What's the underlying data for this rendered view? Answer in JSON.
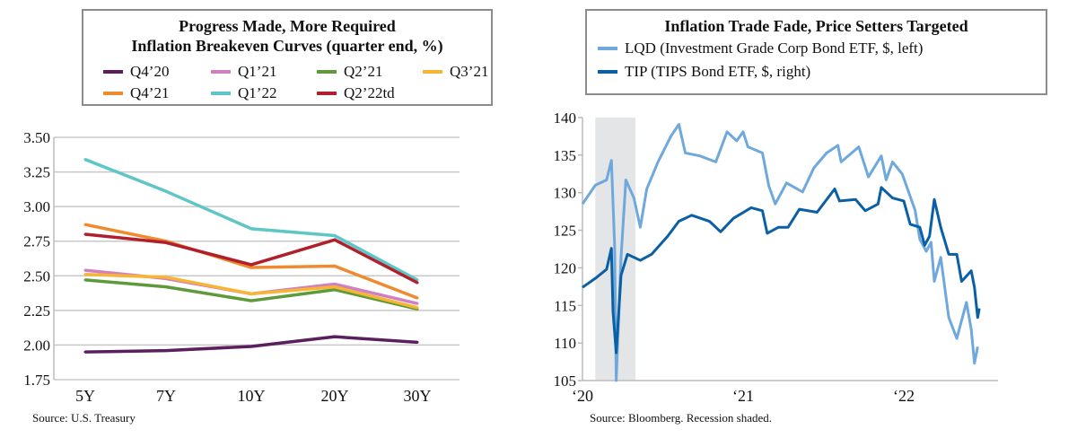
{
  "chart_data": [
    {
      "type": "line",
      "title": "Progress Made, More Required",
      "subtitle": "Inflation Breakeven Curves (quarter end, %)",
      "categories": [
        "5Y",
        "7Y",
        "10Y",
        "20Y",
        "30Y"
      ],
      "yticks": [
        "3.50",
        "3.25",
        "3.00",
        "2.75",
        "2.50",
        "2.25",
        "2.00",
        "1.75"
      ],
      "ylim": [
        1.75,
        3.5
      ],
      "grid": true,
      "series": [
        {
          "name": "Q4’20",
          "color": "#5c1f5e",
          "values": [
            1.95,
            1.96,
            1.99,
            2.06,
            2.02
          ]
        },
        {
          "name": "Q1’21",
          "color": "#d07fc3",
          "values": [
            2.54,
            2.48,
            2.37,
            2.44,
            2.3
          ]
        },
        {
          "name": "Q2’21",
          "color": "#5e9a3a",
          "values": [
            2.47,
            2.42,
            2.32,
            2.4,
            2.26
          ]
        },
        {
          "name": "Q3’21",
          "color": "#f6b533",
          "values": [
            2.51,
            2.49,
            2.37,
            2.42,
            2.27
          ]
        },
        {
          "name": "Q4’21",
          "color": "#ef8a2f",
          "values": [
            2.87,
            2.75,
            2.56,
            2.57,
            2.34
          ]
        },
        {
          "name": "Q1’22",
          "color": "#5ec6c6",
          "values": [
            3.34,
            3.11,
            2.84,
            2.79,
            2.47
          ]
        },
        {
          "name": "Q2’22td",
          "color": "#b0202c",
          "values": [
            2.8,
            2.74,
            2.58,
            2.76,
            2.45
          ]
        }
      ],
      "source": "Source:  U.S. Treasury"
    },
    {
      "type": "line",
      "title": "Inflation Trade Fade, Price Setters Targeted",
      "xticks": [
        {
          "label": "‘20",
          "x": 2020
        },
        {
          "label": "‘21",
          "x": 2021
        },
        {
          "label": "‘22",
          "x": 2022
        }
      ],
      "xlim": [
        2020,
        2022.6
      ],
      "ylim": [
        105,
        140
      ],
      "yticks": [
        "140",
        "135",
        "130",
        "125",
        "120",
        "115",
        "110",
        "105"
      ],
      "recession": [
        2020.08,
        2020.33
      ],
      "series": [
        {
          "name": "LQD (Investment Grade Corp Bond ETF, $, left)",
          "color": "#6fa8dc",
          "points": [
            [
              2020.0,
              128.5
            ],
            [
              2020.08,
              131
            ],
            [
              2020.15,
              131.7
            ],
            [
              2020.18,
              134.3
            ],
            [
              2020.2,
              123
            ],
            [
              2020.21,
              105
            ],
            [
              2020.24,
              121.4
            ],
            [
              2020.27,
              131.7
            ],
            [
              2020.32,
              129.3
            ],
            [
              2020.36,
              125.4
            ],
            [
              2020.4,
              130.5
            ],
            [
              2020.47,
              134.1
            ],
            [
              2020.55,
              137.5
            ],
            [
              2020.6,
              139.1
            ],
            [
              2020.64,
              135.3
            ],
            [
              2020.73,
              134.9
            ],
            [
              2020.83,
              134.1
            ],
            [
              2020.9,
              138.1
            ],
            [
              2020.96,
              136.9
            ],
            [
              2021.0,
              138.1
            ],
            [
              2021.03,
              136.1
            ],
            [
              2021.12,
              135.3
            ],
            [
              2021.16,
              130.9
            ],
            [
              2021.2,
              128.5
            ],
            [
              2021.27,
              131.3
            ],
            [
              2021.37,
              130.1
            ],
            [
              2021.44,
              133.3
            ],
            [
              2021.52,
              135.3
            ],
            [
              2021.59,
              136.3
            ],
            [
              2021.61,
              134.1
            ],
            [
              2021.72,
              136.1
            ],
            [
              2021.78,
              132.1
            ],
            [
              2021.86,
              134.9
            ],
            [
              2021.89,
              131.7
            ],
            [
              2021.93,
              134.1
            ],
            [
              2021.99,
              132.5
            ],
            [
              2022.07,
              127.7
            ],
            [
              2022.1,
              123.8
            ],
            [
              2022.14,
              122.2
            ],
            [
              2022.17,
              123.4
            ],
            [
              2022.19,
              118.2
            ],
            [
              2022.23,
              121.4
            ],
            [
              2022.28,
              113.4
            ],
            [
              2022.33,
              110.6
            ],
            [
              2022.39,
              115.4
            ],
            [
              2022.42,
              111.8
            ],
            [
              2022.44,
              107.3
            ],
            [
              2022.46,
              109.5
            ]
          ]
        },
        {
          "name": "TIP (TIPS Bond ETF, $, right)",
          "color": "#0b5fa5",
          "points": [
            [
              2020.0,
              117.4
            ],
            [
              2020.08,
              118.6
            ],
            [
              2020.15,
              119.8
            ],
            [
              2020.18,
              122.6
            ],
            [
              2020.19,
              114.2
            ],
            [
              2020.21,
              108.7
            ],
            [
              2020.24,
              119
            ],
            [
              2020.28,
              121.8
            ],
            [
              2020.36,
              121
            ],
            [
              2020.43,
              121.8
            ],
            [
              2020.53,
              124.2
            ],
            [
              2020.6,
              126.2
            ],
            [
              2020.68,
              127
            ],
            [
              2020.79,
              126.2
            ],
            [
              2020.86,
              124.8
            ],
            [
              2020.94,
              126.6
            ],
            [
              2021.05,
              128
            ],
            [
              2021.12,
              127.6
            ],
            [
              2021.15,
              124.6
            ],
            [
              2021.22,
              125.4
            ],
            [
              2021.28,
              125.4
            ],
            [
              2021.35,
              127.8
            ],
            [
              2021.46,
              127.4
            ],
            [
              2021.57,
              130.5
            ],
            [
              2021.6,
              128.9
            ],
            [
              2021.7,
              129.1
            ],
            [
              2021.76,
              127.6
            ],
            [
              2021.84,
              128.5
            ],
            [
              2021.86,
              130.7
            ],
            [
              2021.93,
              129.3
            ],
            [
              2022.0,
              128.9
            ],
            [
              2022.04,
              125.8
            ],
            [
              2022.1,
              125.4
            ],
            [
              2022.13,
              123
            ],
            [
              2022.16,
              124.2
            ],
            [
              2022.19,
              129.1
            ],
            [
              2022.23,
              125.4
            ],
            [
              2022.28,
              121.8
            ],
            [
              2022.33,
              121.8
            ],
            [
              2022.36,
              118.2
            ],
            [
              2022.42,
              119.6
            ],
            [
              2022.44,
              117.4
            ],
            [
              2022.46,
              113.4
            ],
            [
              2022.47,
              114.6
            ]
          ]
        }
      ],
      "source": "Source:  Bloomberg. Recession shaded."
    }
  ]
}
